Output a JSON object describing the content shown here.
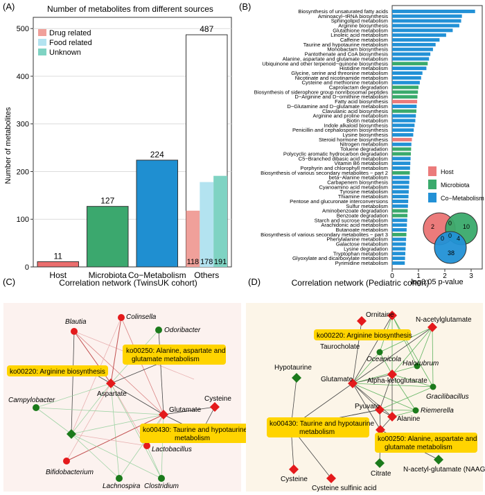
{
  "panels": {
    "A": {
      "letter": "(A)",
      "title": "Number of  metabolites from different sources",
      "ylabel": "Number of  metabolites",
      "yticks": [
        0,
        100,
        200,
        300,
        400,
        500
      ],
      "legend": [
        {
          "label": "Drug related",
          "color": "#f0a09a"
        },
        {
          "label": "Food related",
          "color": "#b3e3f0"
        },
        {
          "label": "Unknown",
          "color": "#7fd3c3"
        }
      ],
      "main_bars": [
        {
          "category": "Host",
          "value": 11,
          "color": "#eb6e6e"
        },
        {
          "category": "Microbiota",
          "value": 127,
          "color": "#3ba86e"
        },
        {
          "category": "Co−Metabolism",
          "value": 224,
          "color": "#1f8fd1"
        },
        {
          "category": "Others",
          "value": 487,
          "color": "#ffffff"
        }
      ],
      "others_sub": [
        {
          "label": "118",
          "value": 118,
          "color": "#f0a09a"
        },
        {
          "label": "178",
          "value": 178,
          "color": "#b3e3f0"
        },
        {
          "label": "191",
          "value": 191,
          "color": "#7fd3c3"
        }
      ]
    },
    "B": {
      "letter": "(B)",
      "xlabel": "log0.05 p-value",
      "xticks": [
        0,
        1,
        2,
        3
      ],
      "legend": [
        {
          "label": "Host",
          "color": "#eb7b7b"
        },
        {
          "label": "Microbiota",
          "color": "#3aaa6c"
        },
        {
          "label": "Co−Metabolism",
          "color": "#2291d6"
        }
      ],
      "venn": {
        "host_only": "2",
        "micro_only": "10",
        "co_only": "38",
        "host_micro": "0",
        "host_co": "0",
        "micro_co": "4",
        "all": "0"
      }
    },
    "C": {
      "letter": "(C)",
      "title": "Correlation network (TwinsUK cohort)",
      "labels": {
        "blautia": "Blautia",
        "colinsella": "Colinsella",
        "odoribacter": "Odoribacter",
        "pathway250": [
          "ko00250: Alanine, aspartate and",
          "glutamate metabolism"
        ],
        "pathway220": "ko00220: Arginine biosynthesis",
        "campylobacter": "Campylobacter",
        "aspartate": "Aspartate",
        "glutamate": "Glutamate",
        "cysteine": "Cysteine",
        "pathway430": [
          "ko00430: Taurine and hypotaurine",
          "metabolism"
        ],
        "lactobacillus": "Lactobacillus",
        "bifidobacterium": "Bifidobacterium",
        "lachnospira": "Lachnospira",
        "clostridium": "Clostridium"
      }
    },
    "D": {
      "letter": "(D)",
      "title": "Correlation network (Pediatric cohort)",
      "labels": {
        "ornitaine": "Ornitaine",
        "nacetylglutamate": "N-acetylglutamate",
        "pathway220": "ko00220: Arginine biosynthesis",
        "taurocholate": "Taurocholate",
        "oceanicola": "Oceanicola",
        "halorubrum": "Halorubrum",
        "hypotaurine": "Hypotaurine",
        "glutamate": "Glutamate",
        "alphakg": "Alpha-ketoglutarate",
        "gracilibacillus": "Gracilibacillus",
        "pyuvate": "Pyuvate",
        "riemerella": "Riemerella",
        "alanine": "Alanine",
        "pathway430": [
          "ko00430: Taurine and hypotaurine",
          "metabolism"
        ],
        "pathway250": [
          "ko00250: Alanine, aspartate and",
          "glutamate metabolism"
        ],
        "citrate": "Citrate",
        "naag": "N-acetyl-glutamate (NAAG)",
        "cysteine": "Cysteine",
        "cysteine_sulfinic": "Cysteine sulfinic acid"
      }
    }
  },
  "chart_data": [
    {
      "type": "bar",
      "title": "Number of  metabolites from different sources",
      "xlabel": "",
      "ylabel": "Number of  metabolites",
      "ylim": [
        0,
        500
      ],
      "categories": [
        "Host",
        "Microbiota",
        "Co−Metabolism",
        "Others"
      ],
      "values": [
        11,
        127,
        224,
        487
      ],
      "others_breakdown": {
        "Drug related": 118,
        "Food related": 178,
        "Unknown": 191
      }
    },
    {
      "type": "bar",
      "orientation": "horizontal",
      "xlabel": "log0.05 p-value",
      "xlim": [
        0,
        3.5
      ],
      "series_names": [
        "Host",
        "Microbiota",
        "Co−Metabolism"
      ],
      "pathways": [
        {
          "name": "Biosynthesis of unsaturated fatty acids",
          "value": 3.15,
          "group": "co"
        },
        {
          "name": "Aminoacyl−tRNA biosynthesis",
          "value": 2.65,
          "group": "co"
        },
        {
          "name": "Sphingolipid metabolism",
          "value": 2.62,
          "group": "co"
        },
        {
          "name": "Arginine biosynthesis",
          "value": 2.55,
          "group": "co"
        },
        {
          "name": "Glutathione metabolism",
          "value": 2.3,
          "group": "co"
        },
        {
          "name": "Linoleic acid metabolism",
          "value": 2.05,
          "group": "co"
        },
        {
          "name": "Caffeine metabolism",
          "value": 1.8,
          "group": "co"
        },
        {
          "name": "Taurine and hypotaurine metabolism",
          "value": 1.65,
          "group": "co"
        },
        {
          "name": "Monobactam biosynthesis",
          "value": 1.55,
          "group": "co"
        },
        {
          "name": "Pantothenate and CoA biosynthesis",
          "value": 1.45,
          "group": "co"
        },
        {
          "name": "Alanine, aspartate and glutamate metabolism",
          "value": 1.4,
          "group": "co"
        },
        {
          "name": "Ubiquinone and other terpenoid−quinone biosynthesis",
          "value": 1.35,
          "group": "micro"
        },
        {
          "name": "Histidine metabolism",
          "value": 1.3,
          "group": "co"
        },
        {
          "name": "Glycine, serine and threonine metabolism",
          "value": 1.15,
          "group": "co"
        },
        {
          "name": "Nicotinate and nicotinamide metabolism",
          "value": 1.1,
          "group": "co"
        },
        {
          "name": "Cysteine and methionine metabolism",
          "value": 1.05,
          "group": "co"
        },
        {
          "name": "Caprolactam degradation",
          "value": 1.0,
          "group": "micro"
        },
        {
          "name": "Biosynthesis of siderophore group nonribosomal peptides",
          "value": 0.98,
          "group": "micro"
        },
        {
          "name": "D−Arginine and D−ornithine metabolism",
          "value": 0.96,
          "group": "micro"
        },
        {
          "name": "Fatty acid biosynthesis",
          "value": 0.95,
          "group": "host"
        },
        {
          "name": "D−Glutamine and D−glutamate metabolism",
          "value": 0.93,
          "group": "co"
        },
        {
          "name": "Clavulanic acid biosynthesis",
          "value": 0.92,
          "group": "micro"
        },
        {
          "name": "Arginine and proline metabolism",
          "value": 0.9,
          "group": "co"
        },
        {
          "name": "Biotin metabolism",
          "value": 0.88,
          "group": "co"
        },
        {
          "name": "Indole alkaloid biosynthesis",
          "value": 0.85,
          "group": "co"
        },
        {
          "name": "Penicillin and cephalosporin biosynthesis",
          "value": 0.82,
          "group": "co"
        },
        {
          "name": "Lysine biosynthesis",
          "value": 0.8,
          "group": "co"
        },
        {
          "name": "Steroid hormone biosynthesis",
          "value": 0.75,
          "group": "host"
        },
        {
          "name": "Nitrogen metabolism",
          "value": 0.73,
          "group": "co"
        },
        {
          "name": "Toluene degradation",
          "value": 0.72,
          "group": "micro"
        },
        {
          "name": "Polycyclic aromatic hydrocarbon degradation",
          "value": 0.71,
          "group": "micro"
        },
        {
          "name": "C5−Branched dibasic acid metabolism",
          "value": 0.7,
          "group": "co"
        },
        {
          "name": "Vitamin B6 metabolism",
          "value": 0.69,
          "group": "co"
        },
        {
          "name": "Porphyrin and chlorophyll metabolism",
          "value": 0.68,
          "group": "co"
        },
        {
          "name": "Biosynthesis of various secondary metabolites − part 2",
          "value": 0.67,
          "group": "micro"
        },
        {
          "name": "beta−Alanine metabolism",
          "value": 0.66,
          "group": "co"
        },
        {
          "name": "Carbapenem biosynthesis",
          "value": 0.65,
          "group": "co"
        },
        {
          "name": "Cyanoamino acid metabolism",
          "value": 0.64,
          "group": "co"
        },
        {
          "name": "Tyrosine metabolism",
          "value": 0.63,
          "group": "co"
        },
        {
          "name": "Thiamine metabolism",
          "value": 0.62,
          "group": "co"
        },
        {
          "name": "Pentose and glucuronate interconversions",
          "value": 0.61,
          "group": "co"
        },
        {
          "name": "Sulfur metabolism",
          "value": 0.6,
          "group": "co"
        },
        {
          "name": "Aminobenzoate degradation",
          "value": 0.59,
          "group": "micro"
        },
        {
          "name": "Benzoate degradation",
          "value": 0.58,
          "group": "micro"
        },
        {
          "name": "Starch and sucrose metabolism",
          "value": 0.57,
          "group": "co"
        },
        {
          "name": "Arachidonic acid metabolism",
          "value": 0.56,
          "group": "co"
        },
        {
          "name": "Butanoate metabolism",
          "value": 0.55,
          "group": "co"
        },
        {
          "name": "Biosynthesis of various secondary metabolites − part 3",
          "value": 0.54,
          "group": "micro"
        },
        {
          "name": "Phenylalanine metabolism",
          "value": 0.53,
          "group": "co"
        },
        {
          "name": "Galactose metabolism",
          "value": 0.52,
          "group": "co"
        },
        {
          "name": "Lysine degradation",
          "value": 0.51,
          "group": "co"
        },
        {
          "name": "Tryptophan metabolism",
          "value": 0.5,
          "group": "co"
        },
        {
          "name": "Glyoxylate and dicarboxylate metabolism",
          "value": 0.49,
          "group": "co"
        },
        {
          "name": "Pyrimidine metabolism",
          "value": 0.48,
          "group": "co"
        }
      ]
    }
  ]
}
